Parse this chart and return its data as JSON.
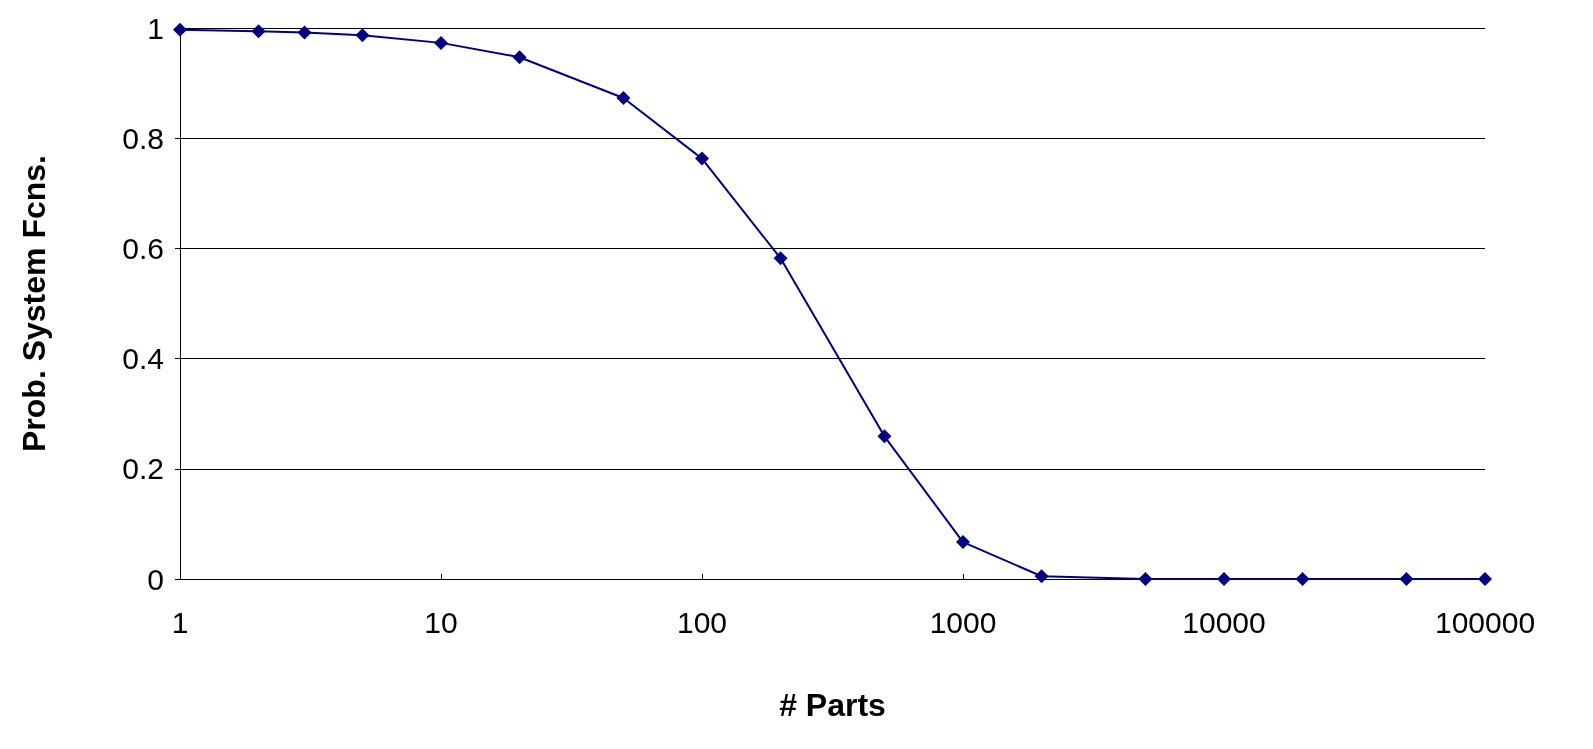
{
  "chart_data": {
    "type": "line",
    "xlabel": "# Parts",
    "ylabel": "Prob. System Fcns.",
    "x": [
      1,
      2,
      3,
      5,
      10,
      20,
      50,
      100,
      200,
      500,
      1000,
      2000,
      5000,
      10000,
      20000,
      50000,
      100000
    ],
    "series": [
      {
        "color": "#000080",
        "values": [
          0.997,
          0.994,
          0.992,
          0.987,
          0.973,
          0.947,
          0.873,
          0.763,
          0.582,
          0.259,
          0.067,
          0.005,
          0,
          0,
          0,
          0,
          0
        ]
      }
    ],
    "log": "x",
    "xlim": [
      1,
      100000
    ],
    "xticks": [
      1,
      10,
      100,
      1000,
      10000,
      100000
    ],
    "ylim": [
      0,
      1
    ],
    "yticks": [
      0,
      0.2,
      0.4,
      0.6,
      0.8,
      1
    ],
    "grid": "y",
    "marker": "diamond",
    "line_style": "solid"
  }
}
